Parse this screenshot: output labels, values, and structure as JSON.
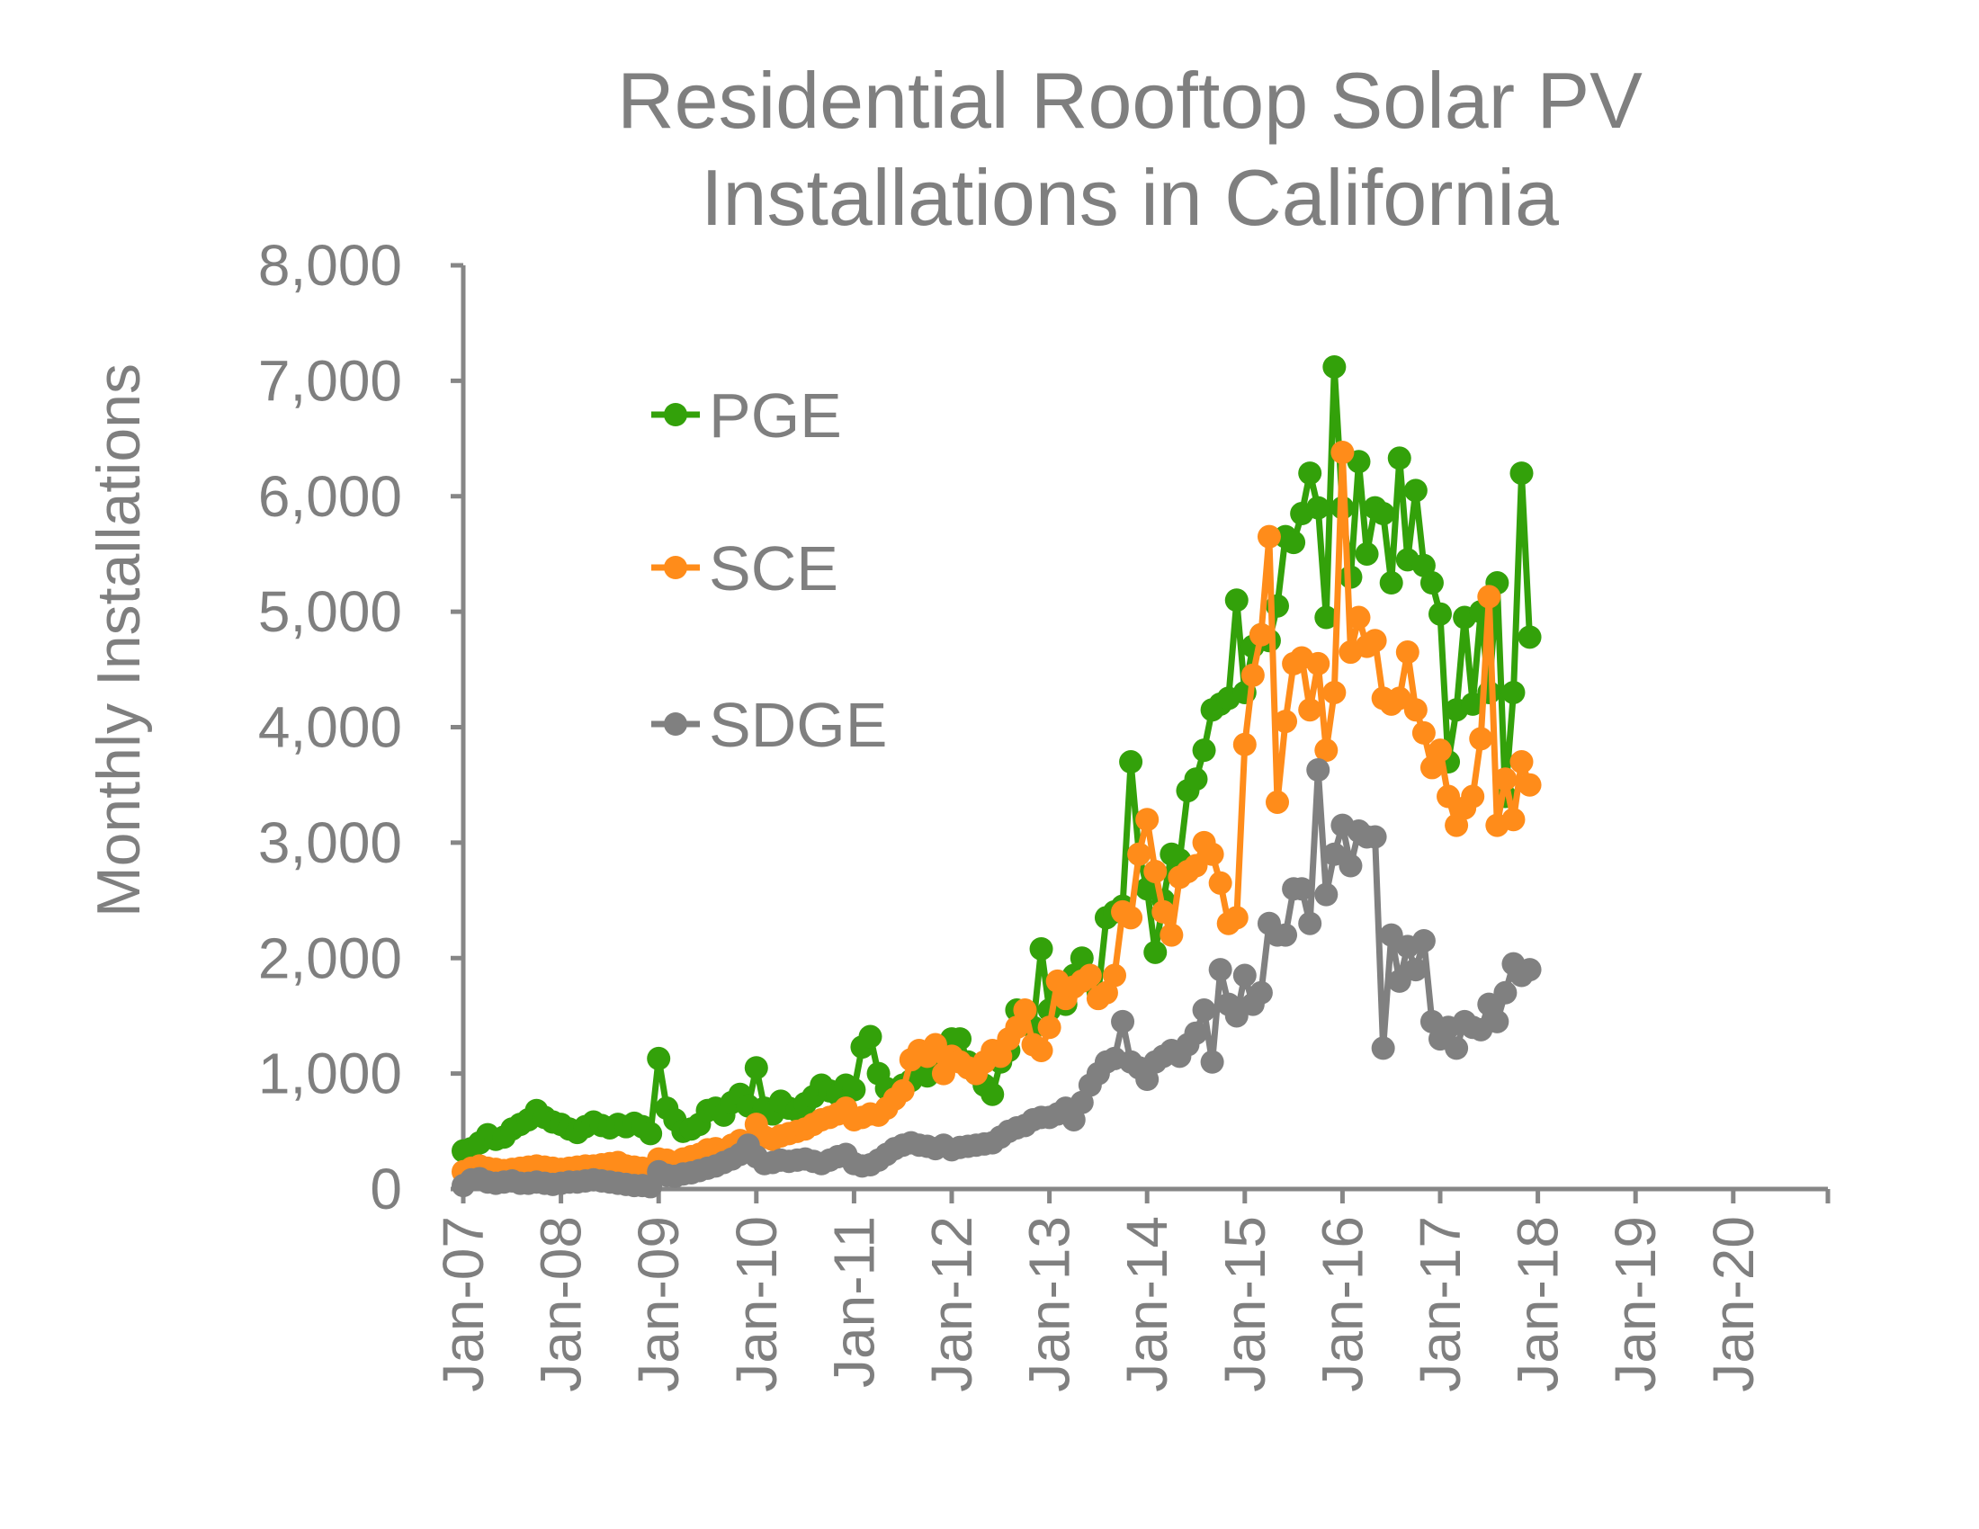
{
  "chart_data": {
    "type": "line",
    "title_lines": [
      "Residential Rooftop Solar PV",
      "Installations in California"
    ],
    "xlabel": "",
    "ylabel": "Monthly Installations",
    "ylim": [
      0,
      8000
    ],
    "yticks": [
      0,
      1000,
      2000,
      3000,
      4000,
      5000,
      6000,
      7000,
      8000
    ],
    "ytick_labels": [
      "0",
      "1,000",
      "2,000",
      "3,000",
      "4,000",
      "5,000",
      "6,000",
      "7,000",
      "8,000"
    ],
    "xlim_years": [
      2007,
      2021
    ],
    "xtick_labels": [
      "Jan-07",
      "Jan-08",
      "Jan-09",
      "Jan-10",
      "Jan-11",
      "Jan-12",
      "Jan-13",
      "Jan-14",
      "Jan-15",
      "Jan-16",
      "Jan-17",
      "Jan-18",
      "Jan-19",
      "Jan-20"
    ],
    "x_start": "Jan-07",
    "x_step": "monthly",
    "grid": false,
    "legend_position": "top-left",
    "series": [
      {
        "name": "PGE",
        "color": "#33a10a",
        "values": [
          330,
          350,
          400,
          470,
          430,
          450,
          520,
          560,
          600,
          680,
          620,
          580,
          560,
          520,
          490,
          540,
          580,
          550,
          530,
          560,
          540,
          570,
          540,
          480,
          1130,
          700,
          600,
          500,
          520,
          560,
          680,
          700,
          640,
          750,
          820,
          720,
          1050,
          700,
          650,
          760,
          700,
          680,
          740,
          800,
          900,
          850,
          820,
          900,
          860,
          1230,
          1320,
          1000,
          870,
          800,
          900,
          940,
          1000,
          980,
          1050,
          1150,
          1300,
          1300,
          1100,
          1000,
          900,
          820,
          1100,
          1200,
          1550,
          1500,
          1400,
          2080,
          1550,
          1750,
          1600,
          1850,
          2000,
          1800,
          1700,
          2350,
          2400,
          2450,
          3700,
          2900,
          2600,
          2050,
          2500,
          2900,
          2850,
          3450,
          3550,
          3800,
          4150,
          4200,
          4250,
          5100,
          4300,
          4700,
          4800,
          4750,
          5050,
          5650,
          5600,
          5850,
          6200,
          5900,
          4950,
          7120,
          5900,
          5300,
          6300,
          5500,
          5900,
          5850,
          5250,
          6330,
          5450,
          6050,
          5400,
          5250,
          4980,
          3700,
          4150,
          4950,
          4200,
          5000,
          4300,
          5250,
          3400,
          4300,
          6200,
          4780
        ]
      },
      {
        "name": "SCE",
        "color": "#ff8c1a",
        "values": [
          150,
          180,
          200,
          180,
          170,
          160,
          170,
          180,
          190,
          200,
          190,
          180,
          170,
          180,
          190,
          200,
          200,
          210,
          220,
          230,
          200,
          190,
          180,
          170,
          260,
          250,
          230,
          260,
          280,
          300,
          340,
          350,
          330,
          380,
          420,
          400,
          560,
          450,
          430,
          460,
          480,
          500,
          520,
          560,
          600,
          620,
          650,
          700,
          600,
          620,
          650,
          640,
          700,
          780,
          850,
          1120,
          1200,
          1150,
          1250,
          1000,
          1150,
          1100,
          1050,
          1000,
          1100,
          1200,
          1150,
          1300,
          1400,
          1550,
          1250,
          1200,
          1400,
          1800,
          1650,
          1750,
          1800,
          1850,
          1650,
          1700,
          1850,
          2400,
          2350,
          2900,
          3200,
          2750,
          2400,
          2200,
          2700,
          2750,
          2800,
          3000,
          2900,
          2650,
          2300,
          2350,
          3850,
          4450,
          4800,
          5650,
          3350,
          4050,
          4550,
          4600,
          4150,
          4550,
          3800,
          4300,
          6380,
          4650,
          4950,
          4700,
          4750,
          4250,
          4200,
          4250,
          4650,
          4150,
          3950,
          3650,
          3800,
          3400,
          3150,
          3300,
          3400,
          3900,
          5130,
          3150,
          3550,
          3200,
          3700,
          3500
        ]
      },
      {
        "name": "SDGE",
        "color": "#808080",
        "values": [
          30,
          80,
          90,
          60,
          50,
          60,
          70,
          50,
          50,
          60,
          50,
          40,
          50,
          60,
          60,
          70,
          80,
          70,
          60,
          50,
          40,
          30,
          30,
          20,
          150,
          120,
          110,
          130,
          140,
          160,
          180,
          200,
          230,
          260,
          300,
          380,
          280,
          220,
          230,
          250,
          240,
          250,
          260,
          240,
          220,
          250,
          280,
          300,
          220,
          200,
          210,
          250,
          300,
          350,
          380,
          400,
          380,
          370,
          350,
          380,
          340,
          360,
          370,
          380,
          390,
          400,
          450,
          500,
          530,
          550,
          600,
          620,
          620,
          650,
          700,
          600,
          750,
          900,
          1000,
          1100,
          1130,
          1450,
          1100,
          1050,
          950,
          1100,
          1150,
          1200,
          1150,
          1250,
          1350,
          1550,
          1100,
          1900,
          1600,
          1500,
          1850,
          1600,
          1700,
          2300,
          2200,
          2200,
          2600,
          2600,
          2300,
          3630,
          2550,
          2900,
          3150,
          2800,
          3100,
          3050,
          3050,
          1220,
          2200,
          1800,
          2100,
          1900,
          2150,
          1450,
          1300,
          1400,
          1220,
          1450,
          1400,
          1380,
          1600,
          1450,
          1700,
          1950,
          1850,
          1900
        ]
      }
    ]
  }
}
